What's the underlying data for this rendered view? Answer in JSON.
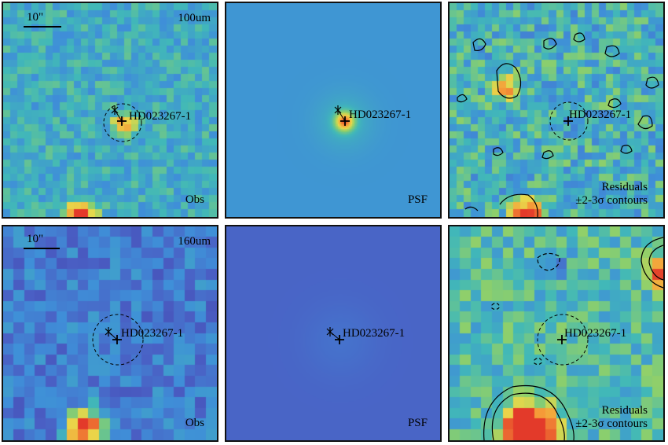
{
  "image_description_labels": {
    "scale_bar": "10\"",
    "source_name": "HD023267-1",
    "observed": "Obs",
    "model": "PSF",
    "residuals": "Residuals",
    "contours": "±2-3σ contours"
  },
  "rows": [
    {
      "band": "100um"
    },
    {
      "band": "160um"
    }
  ],
  "colors": {
    "colormap": [
      "#3b2a98",
      "#4a5fc4",
      "#3f8fd8",
      "#41b8b8",
      "#8ccf6c",
      "#e9d84a",
      "#f59a38",
      "#e33a2a"
    ]
  }
}
